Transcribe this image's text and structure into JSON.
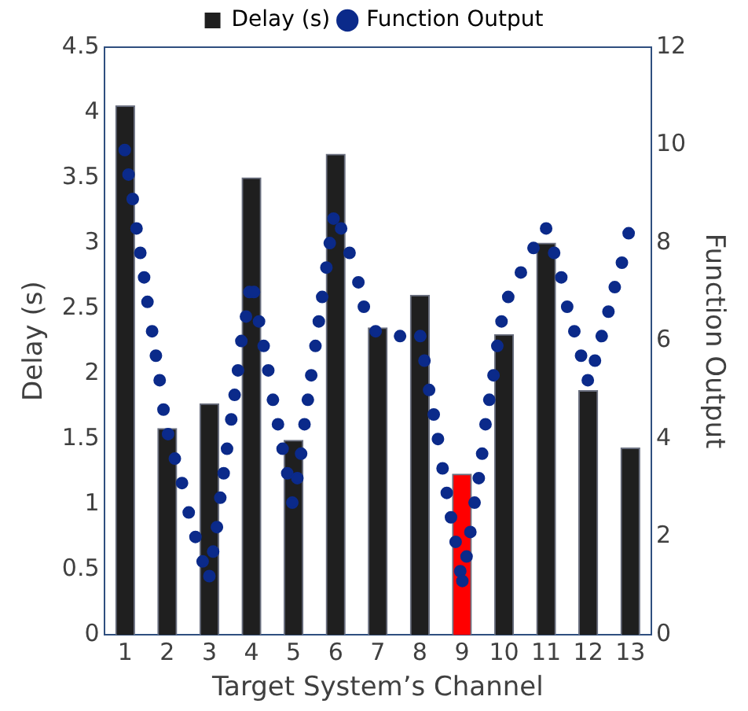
{
  "chart_data": {
    "type": "bar",
    "xlabel": "Target System’s Channel",
    "ylabel": "Delay (s)",
    "y2label": "Function Output",
    "x": [
      1,
      2,
      3,
      4,
      5,
      6,
      7,
      8,
      9,
      10,
      11,
      12,
      13
    ],
    "xlim": [
      0.5,
      13.5
    ],
    "xticks": [
      1,
      2,
      3,
      4,
      5,
      6,
      7,
      8,
      9,
      10,
      11,
      12,
      13
    ],
    "ylim": [
      0,
      4.5
    ],
    "yticks": [
      0,
      0.5,
      1,
      1.5,
      2,
      2.5,
      3,
      3.5,
      4,
      4.5
    ],
    "y2lim": [
      0,
      12
    ],
    "y2ticks": [
      0,
      2,
      4,
      6,
      8,
      10,
      12
    ],
    "legend": "top",
    "grid": false,
    "series": [
      {
        "name": "Delay (s)",
        "color": "#1f1f1f",
        "colors": [
          "#1f1f1f",
          "#1f1f1f",
          "#1f1f1f",
          "#1f1f1f",
          "#1f1f1f",
          "#1f1f1f",
          "#1f1f1f",
          "#1f1f1f",
          "#ff0000",
          "#1f1f1f",
          "#1f1f1f",
          "#1f1f1f",
          "#1f1f1f"
        ],
        "values": [
          4.05,
          1.58,
          1.77,
          3.5,
          1.49,
          3.68,
          2.35,
          2.6,
          1.23,
          2.3,
          3.0,
          1.87,
          1.43
        ]
      },
      {
        "name": "Function Output",
        "type": "scatter",
        "axis": "y2",
        "marker": "circle",
        "color": "#0b2a8a",
        "x": [
          0.99,
          1.08,
          1.18,
          1.27,
          1.36,
          1.45,
          1.53,
          1.64,
          1.73,
          1.82,
          1.91,
          2.02,
          2.18,
          2.35,
          2.51,
          2.67,
          2.84,
          3.0,
          3.09,
          3.18,
          3.26,
          3.34,
          3.42,
          3.52,
          3.6,
          3.68,
          3.76,
          3.87,
          3.95,
          4.06,
          4.18,
          4.29,
          4.4,
          4.51,
          4.63,
          4.74,
          4.85,
          4.97,
          5.09,
          5.18,
          5.26,
          5.34,
          5.42,
          5.52,
          5.6,
          5.68,
          5.78,
          5.86,
          5.95,
          6.13,
          6.33,
          6.54,
          6.67,
          6.95,
          7.53,
          8.01,
          8.11,
          8.22,
          8.33,
          8.43,
          8.54,
          8.64,
          8.74,
          8.85,
          8.96,
          9.01,
          9.11,
          9.2,
          9.3,
          9.4,
          9.48,
          9.56,
          9.65,
          9.75,
          9.84,
          9.94,
          10.1,
          10.4,
          10.7,
          11.0,
          11.19,
          11.36,
          11.5,
          11.67,
          11.83,
          11.99,
          12.16,
          12.32,
          12.48,
          12.63,
          12.8,
          12.96
        ],
        "values": [
          9.9,
          9.4,
          8.9,
          8.3,
          7.8,
          7.3,
          6.8,
          6.2,
          5.7,
          5.2,
          4.6,
          4.1,
          3.6,
          3.1,
          2.5,
          2.0,
          1.5,
          1.2,
          1.7,
          2.2,
          2.8,
          3.3,
          3.8,
          4.4,
          4.9,
          5.4,
          6.0,
          6.5,
          7.0,
          7.0,
          6.4,
          5.9,
          5.4,
          4.8,
          4.3,
          3.8,
          3.3,
          2.7,
          3.2,
          3.7,
          4.3,
          4.8,
          5.3,
          5.9,
          6.4,
          6.9,
          7.5,
          8.0,
          8.5,
          8.3,
          7.8,
          7.2,
          6.7,
          6.2,
          6.1,
          6.1,
          5.6,
          5.0,
          4.5,
          4.0,
          3.4,
          2.9,
          2.4,
          1.9,
          1.3,
          1.1,
          1.6,
          2.1,
          2.7,
          3.2,
          3.7,
          4.3,
          4.8,
          5.3,
          5.9,
          6.4,
          6.9,
          7.4,
          7.9,
          8.3,
          7.8,
          7.3,
          6.7,
          6.2,
          5.7,
          5.2,
          5.6,
          6.1,
          6.6,
          7.1,
          7.6,
          8.2
        ]
      }
    ]
  }
}
